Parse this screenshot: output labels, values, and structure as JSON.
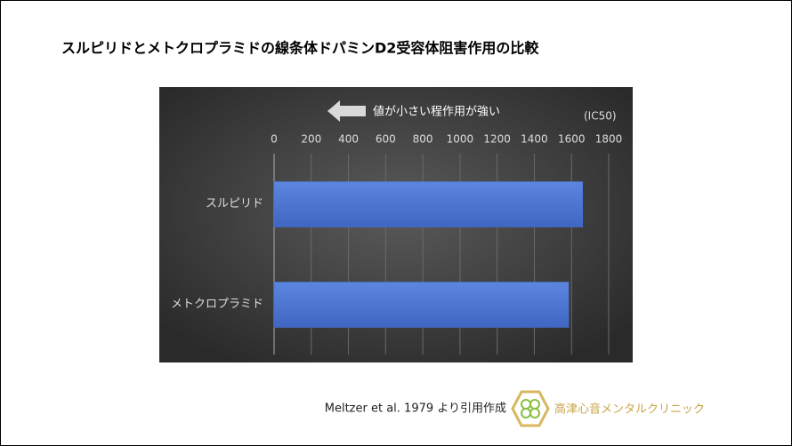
{
  "chart_data": {
    "type": "hbar",
    "title": "スルピリドとメトクロプラミドの線条体ドパミンD2受容体阻害作用の比較",
    "annotation": "値が小さい程作用が強い",
    "unit_label": "(IC50)",
    "categories": [
      "スルピリド",
      "メトクロプラミド"
    ],
    "values": [
      1660,
      1585
    ],
    "color": "#4a74d4",
    "xlim": [
      0,
      1800
    ],
    "xticks": [
      0,
      200,
      400,
      600,
      800,
      1000,
      1200,
      1400,
      1600,
      1800
    ],
    "grid": true
  },
  "footer": {
    "source": "Meltzer et al. 1979 より引用作成",
    "logo_text": "高津心音メンタルクリニック"
  }
}
